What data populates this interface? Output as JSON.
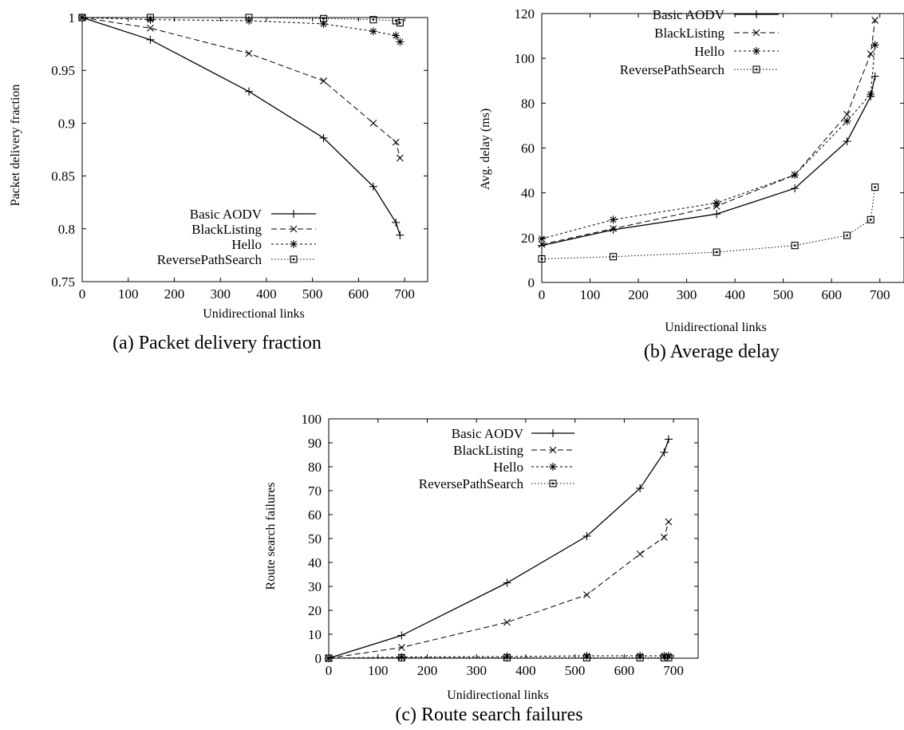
{
  "chart_data": [
    {
      "type": "line",
      "caption": "(a) Packet delivery fraction",
      "xlabel": "Unidirectional links",
      "ylabel": "Packet delivery fraction",
      "xlim": [
        0,
        750
      ],
      "ylim": [
        0.75,
        1
      ],
      "xticks": [
        0,
        100,
        200,
        300,
        400,
        500,
        600,
        700
      ],
      "yticks": [
        0.75,
        0.8,
        0.85,
        0.9,
        0.95,
        1
      ],
      "ytick_labels": [
        "0.75",
        "0.8",
        "0.85",
        "0.9",
        "0.95",
        "1"
      ],
      "legend_position": "bottom-right",
      "series": [
        {
          "name": "Basic AODV",
          "marker": "plus",
          "dash": "none",
          "x": [
            0,
            148,
            362,
            524,
            632,
            681,
            690
          ],
          "y": [
            1.0,
            0.979,
            0.93,
            0.886,
            0.84,
            0.806,
            0.794
          ]
        },
        {
          "name": "BlackListing",
          "marker": "cross",
          "dash": "long",
          "x": [
            0,
            148,
            362,
            524,
            632,
            681,
            690
          ],
          "y": [
            1.0,
            0.99,
            0.966,
            0.94,
            0.9,
            0.882,
            0.867
          ]
        },
        {
          "name": "Hello",
          "marker": "star",
          "dash": "short",
          "x": [
            0,
            148,
            362,
            524,
            632,
            681,
            690
          ],
          "y": [
            1.0,
            0.998,
            0.997,
            0.994,
            0.987,
            0.983,
            0.977
          ]
        },
        {
          "name": "ReversePathSearch",
          "marker": "square",
          "dash": "dot",
          "x": [
            0,
            148,
            362,
            524,
            632,
            681,
            690
          ],
          "y": [
            1.0,
            1.0,
            1.0,
            0.999,
            0.998,
            0.997,
            0.995
          ]
        }
      ]
    },
    {
      "type": "line",
      "caption": "(b) Average delay",
      "xlabel": "Unidirectional links",
      "ylabel": "Avg. delay (ms)",
      "xlim": [
        0,
        750
      ],
      "ylim": [
        0,
        120
      ],
      "xticks": [
        0,
        100,
        200,
        300,
        400,
        500,
        600,
        700
      ],
      "yticks": [
        0,
        20,
        40,
        60,
        80,
        100,
        120
      ],
      "ytick_labels": [
        "0",
        "20",
        "40",
        "60",
        "80",
        "100",
        "120"
      ],
      "legend_position": "top-left",
      "series": [
        {
          "name": "Basic AODV",
          "marker": "plus",
          "dash": "none",
          "x": [
            0,
            148,
            362,
            524,
            632,
            681,
            690
          ],
          "y": [
            16.5,
            23.5,
            30.5,
            42,
            63,
            83,
            92
          ]
        },
        {
          "name": "BlackListing",
          "marker": "cross",
          "dash": "long",
          "x": [
            0,
            148,
            362,
            524,
            632,
            681,
            690
          ],
          "y": [
            17,
            24,
            34,
            48,
            75,
            102,
            117
          ]
        },
        {
          "name": "Hello",
          "marker": "star",
          "dash": "short",
          "x": [
            0,
            148,
            362,
            524,
            632,
            681,
            690
          ],
          "y": [
            19.5,
            28,
            35.5,
            48,
            72,
            84,
            106
          ]
        },
        {
          "name": "ReversePathSearch",
          "marker": "square",
          "dash": "dot",
          "x": [
            0,
            148,
            362,
            524,
            632,
            681,
            690
          ],
          "y": [
            10.5,
            11.5,
            13.5,
            16.5,
            21,
            28,
            42.5
          ]
        }
      ]
    },
    {
      "type": "line",
      "caption": "(c) Route search failures",
      "xlabel": "Unidirectional links",
      "ylabel": "Route search failures",
      "xlim": [
        0,
        750
      ],
      "ylim": [
        0,
        100
      ],
      "xticks": [
        0,
        100,
        200,
        300,
        400,
        500,
        600,
        700
      ],
      "yticks": [
        0,
        10,
        20,
        30,
        40,
        50,
        60,
        70,
        80,
        90,
        100
      ],
      "ytick_labels": [
        "0",
        "10",
        "20",
        "30",
        "40",
        "50",
        "60",
        "70",
        "80",
        "90",
        "100"
      ],
      "legend_position": "top-left",
      "series": [
        {
          "name": "Basic AODV",
          "marker": "plus",
          "dash": "none",
          "x": [
            0,
            148,
            362,
            524,
            632,
            681,
            690
          ],
          "y": [
            0,
            9.5,
            31.5,
            51,
            71,
            86,
            91.5
          ]
        },
        {
          "name": "BlackListing",
          "marker": "cross",
          "dash": "long",
          "x": [
            0,
            148,
            362,
            524,
            632,
            681,
            690
          ],
          "y": [
            0,
            4.5,
            15,
            26.5,
            43.5,
            50.5,
            57
          ]
        },
        {
          "name": "Hello",
          "marker": "star",
          "dash": "short",
          "x": [
            0,
            148,
            362,
            524,
            632,
            681,
            690
          ],
          "y": [
            0,
            0.5,
            0.7,
            1,
            1,
            1,
            1
          ]
        },
        {
          "name": "ReversePathSearch",
          "marker": "square",
          "dash": "dot",
          "x": [
            0,
            148,
            362,
            524,
            632,
            681,
            690
          ],
          "y": [
            0,
            0.2,
            0.2,
            0.2,
            0.2,
            0.2,
            0.2
          ]
        }
      ]
    }
  ]
}
